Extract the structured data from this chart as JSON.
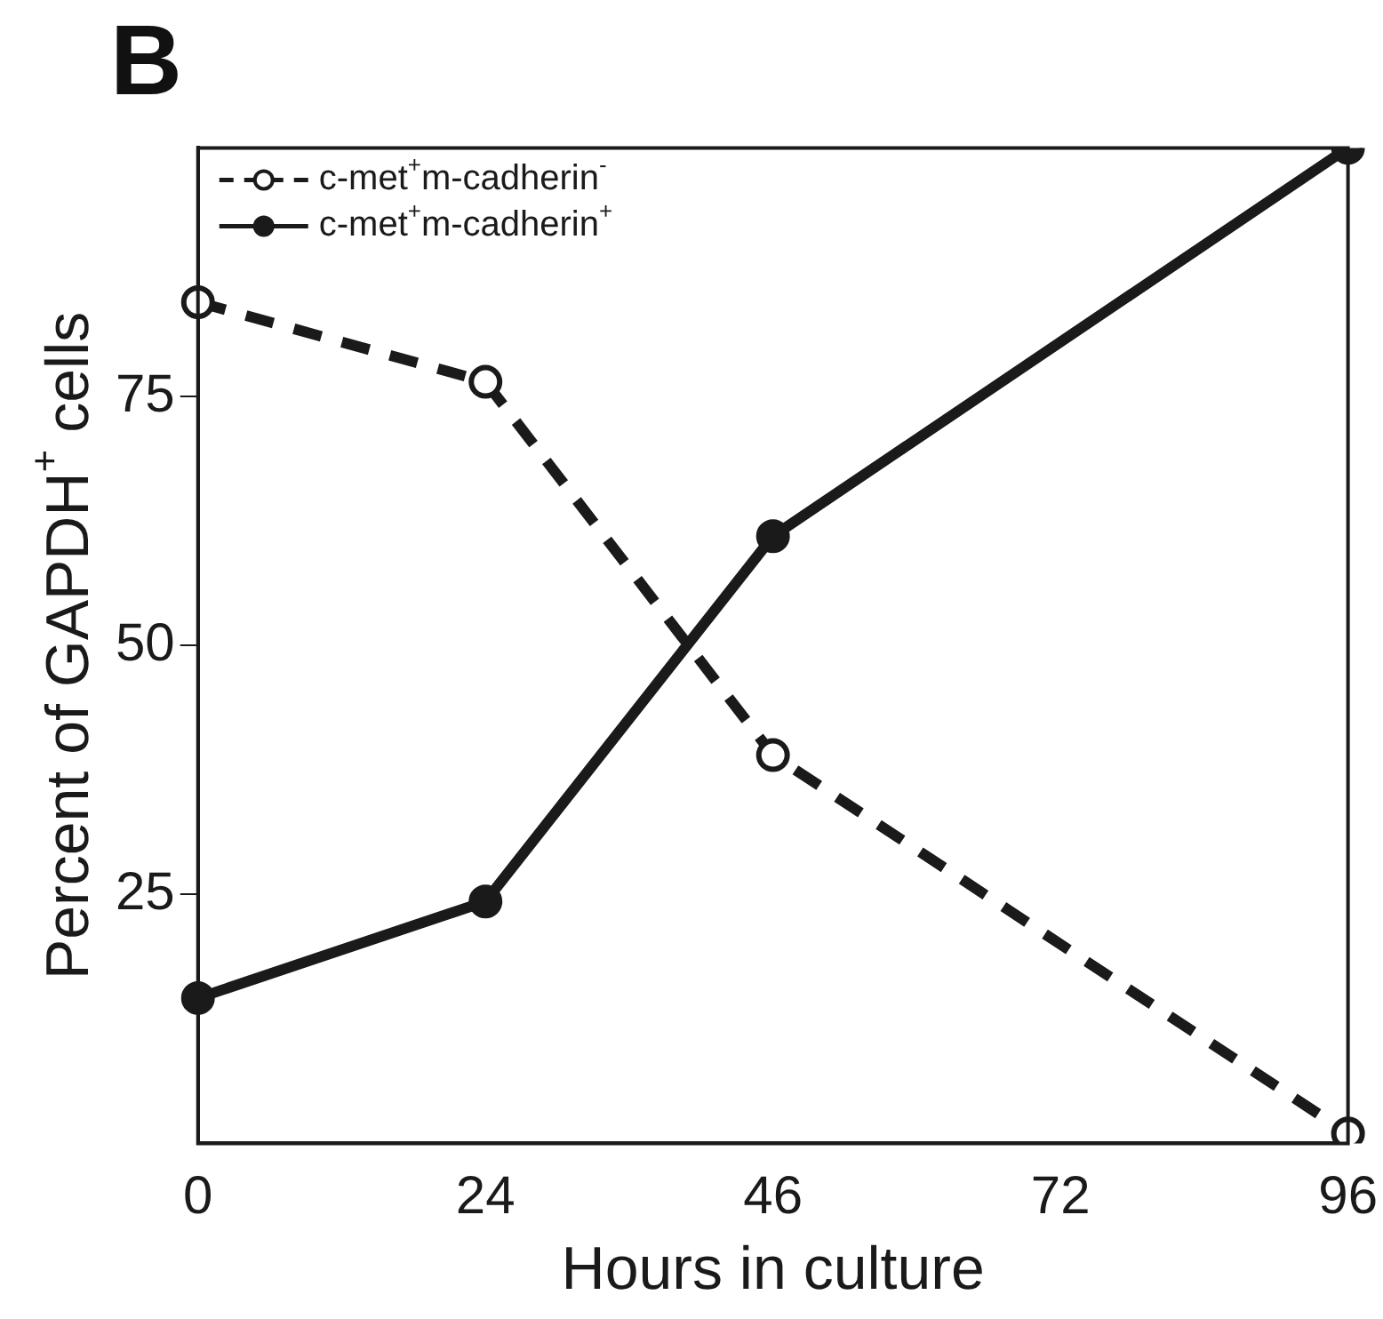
{
  "chart_data": {
    "type": "line",
    "title": "B",
    "xlabel": "Hours in culture",
    "ylabel": "Percent of GAPDH$^{+}$ cells",
    "categories": [
      "0",
      "24",
      "46",
      "72",
      "96"
    ],
    "series": [
      {
        "name": "c-met$^{+}$m-cadherin$^{-}$",
        "color": "#1a1a1a",
        "line_style": "dashed",
        "values": [
          84.5,
          76.5,
          39,
          null,
          1
        ]
      },
      {
        "name": "c-met$^{+}$m-cadherin$^{+}$",
        "color": "#1a1a1a",
        "line_style": "solid",
        "values": [
          14.6,
          24.3,
          61,
          null,
          100
        ]
      }
    ],
    "ylim": [
      0,
      100
    ],
    "yticks": [
      25,
      50,
      75
    ],
    "grid": false,
    "legend": "top left",
    "marker": "circle"
  }
}
